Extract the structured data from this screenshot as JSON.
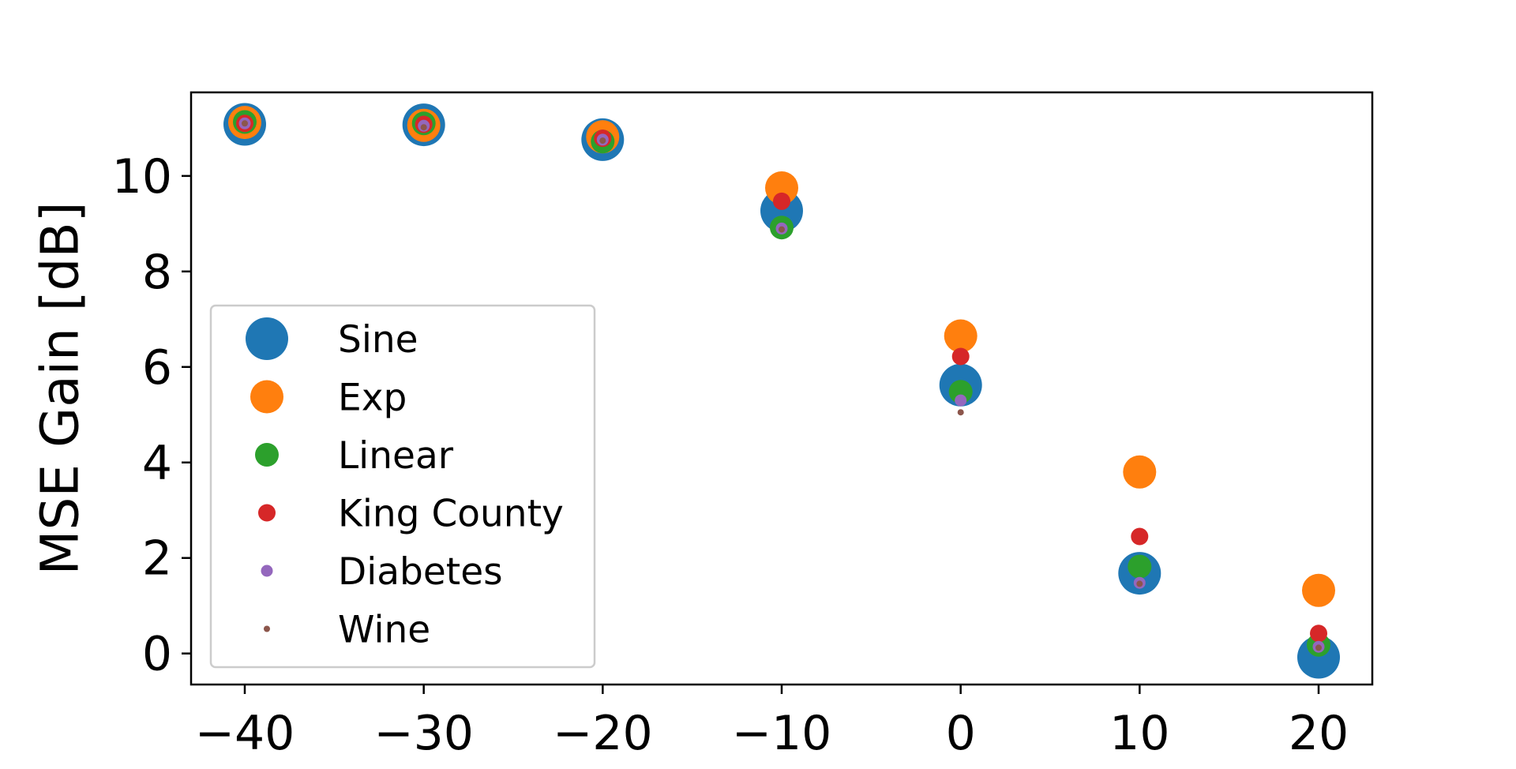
{
  "chart_data": {
    "type": "scatter",
    "title": "",
    "xlabel": "",
    "ylabel": "MSE Gain [dB]",
    "x": [
      -40,
      -30,
      -20,
      -10,
      0,
      10,
      20
    ],
    "xlim": [
      -43,
      23
    ],
    "ylim": [
      -0.65,
      11.75
    ],
    "xticks": [
      "−40",
      "−30",
      "−20",
      "−10",
      "0",
      "10",
      "20"
    ],
    "yticks": [
      "0",
      "2",
      "4",
      "6",
      "8",
      "10"
    ],
    "grid": false,
    "legend_position": "lower-left",
    "series": [
      {
        "name": "Sine",
        "color": "#1f77b4",
        "marker_size": 27,
        "y": [
          11.08,
          11.07,
          10.76,
          9.27,
          5.62,
          1.68,
          -0.08
        ]
      },
      {
        "name": "Exp",
        "color": "#ff7f0e",
        "marker_size": 21,
        "y": [
          11.12,
          11.06,
          10.82,
          9.75,
          6.65,
          3.8,
          1.32
        ]
      },
      {
        "name": "Linear",
        "color": "#2ca02c",
        "marker_size": 15,
        "y": [
          11.13,
          11.1,
          10.72,
          8.92,
          5.48,
          1.82,
          0.18
        ]
      },
      {
        "name": "King County",
        "color": "#d62728",
        "marker_size": 11,
        "y": [
          11.1,
          11.08,
          10.79,
          9.47,
          6.22,
          2.45,
          0.42
        ]
      },
      {
        "name": "Diabetes",
        "color": "#9467bd",
        "marker_size": 7.5,
        "y": [
          11.1,
          11.05,
          10.76,
          8.9,
          5.3,
          1.48,
          0.14
        ]
      },
      {
        "name": "Wine",
        "color": "#8c564b",
        "marker_size": 4,
        "y": [
          11.1,
          11.02,
          10.74,
          8.88,
          5.05,
          1.46,
          0.12
        ]
      }
    ]
  }
}
